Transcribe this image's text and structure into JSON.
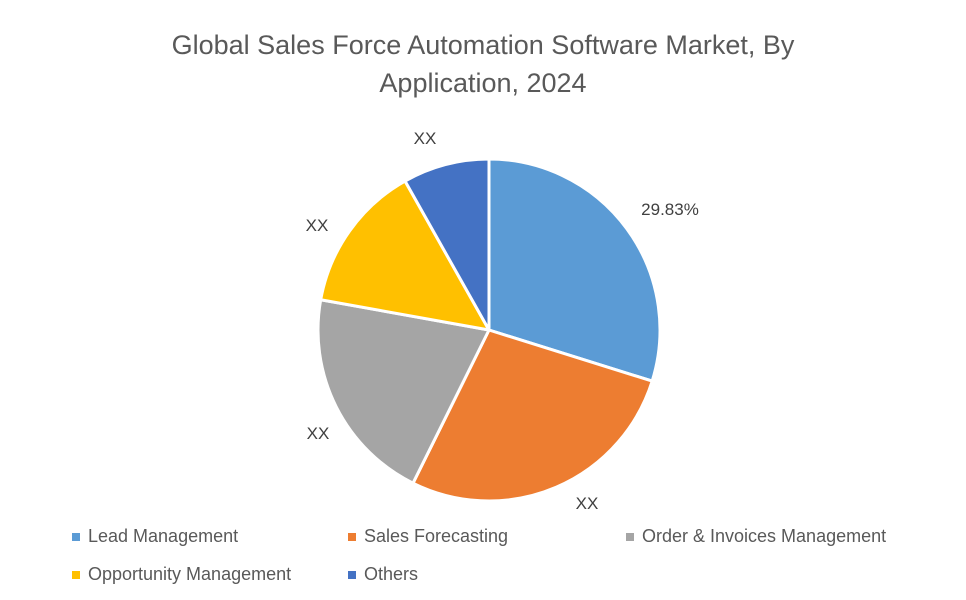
{
  "chart_data": {
    "type": "pie",
    "title_lines": [
      "Global Sales Force Automation Software Market, By",
      "Application, 2024"
    ],
    "categories": [
      "Lead Management",
      "Sales Forecasting",
      "Order & Invoices Management",
      "Opportunity Management",
      "Others"
    ],
    "values": [
      29.83,
      27.5,
      20.5,
      14.0,
      8.17
    ],
    "data_labels": [
      "29.83%",
      "XX",
      "XX",
      "XX",
      "XX"
    ],
    "colors": [
      "#5B9BD5",
      "#ED7D31",
      "#A5A5A5",
      "#FFC000",
      "#4472C4"
    ],
    "legend_position": "bottom"
  }
}
